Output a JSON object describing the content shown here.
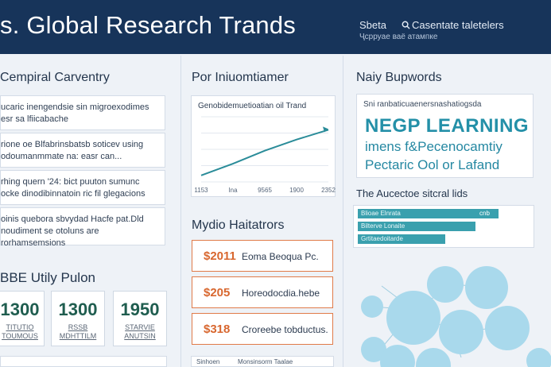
{
  "header": {
    "title": "s. Global Research Trands",
    "nav_left": "Sbeta",
    "nav_right": "Casentate taletelers",
    "sub": "Ҷcрруaе ваë атампке"
  },
  "left": {
    "title": "Cempiral Carventry",
    "items": [
      "ucaric inengendsie sin migroexodimes\nesr sa lfiicabache",
      "rione oe Blfabrinsbatsb soticev using\nodoumanmmate na: easr can...",
      "rhing quern '24: bict puuton sumunc\nocke dinodibinnatoin ric fil glegacions",
      "oinis quebora sbvydad Hacfe pat.Dld\nnoudiment se otoluns are rorhamsemsions"
    ],
    "utility_title": "BBE Utily Pulon",
    "stats": [
      {
        "value": "1300",
        "label": "TITUTIO\nTOUMOUS"
      },
      {
        "value": "1300",
        "label": "RSSB\nMDHTTILM"
      },
      {
        "value": "1950",
        "label": "STARVIE\nANUTSIN"
      }
    ]
  },
  "middle": {
    "title": "Por Iniuomtiamer",
    "chart_title": "Genobidemuetioatian oil Trand",
    "indicators_title": "Mydio Haitatrors",
    "indicators": [
      {
        "value": "$2011",
        "desc": "Eoma Beoqua Pc."
      },
      {
        "value": "$205",
        "desc": "Horeodocdia.hebe"
      },
      {
        "value": "$318",
        "desc": "Croreebe tobductus."
      }
    ],
    "bottom_labels": [
      "Sinhoen",
      "Monsinsorm Taalae"
    ]
  },
  "chart_data": {
    "type": "line",
    "title": "Genobidemuetioatian oil Trand",
    "categories": [
      "1153",
      "Ina",
      "9565",
      "1900",
      "2352"
    ],
    "series": [
      {
        "values": [
          10,
          28,
          48,
          65,
          80
        ]
      }
    ],
    "ylim": [
      0,
      100
    ],
    "grid": true
  },
  "right": {
    "keywords_title": "Naiy Bupwords",
    "kw_sub": "Sni ranbaticuaenersnashatiogsda",
    "kw_main": "NEGP LEARNING",
    "kw_line2": "imens f&Pecenocamtiy",
    "kw_line3": "Pectaric Ool or Lafand",
    "attention_title": "The Aucectoe sitcral lids",
    "bars": [
      {
        "label": "Blioae Elnrata",
        "value": 0.93,
        "value_text": "cnb"
      },
      {
        "label": "Bilterve Lonaite",
        "value": 0.78,
        "value_text": ""
      },
      {
        "label": "Grtitaedoitarde",
        "value": 0.58,
        "value_text": ""
      }
    ]
  },
  "colors": {
    "header_bg": "#17345a",
    "accent_teal": "#2490a8",
    "accent_orange": "#d8672f",
    "stat_green": "#1f5d4f",
    "bubble": "#a9d9ec"
  }
}
